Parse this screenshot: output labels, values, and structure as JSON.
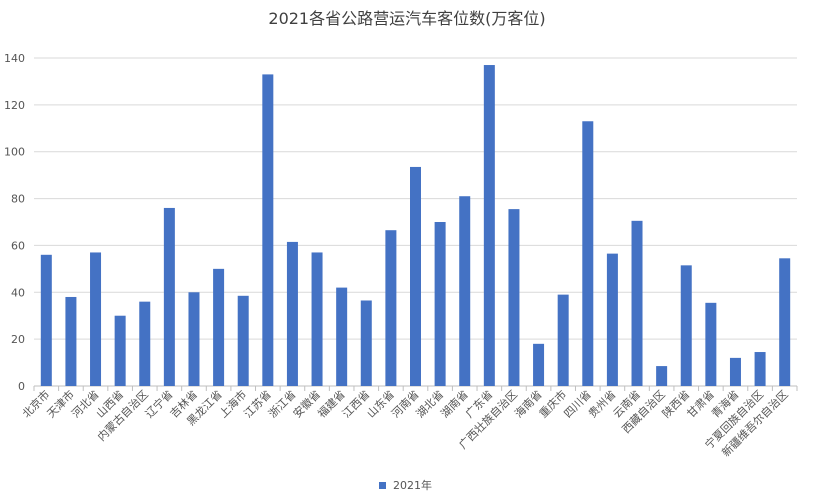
{
  "chart_data": {
    "type": "bar",
    "title": "2021各省公路营运汽车客位数(万客位)",
    "categories": [
      "北京市",
      "天津市",
      "河北省",
      "山西省",
      "内蒙古自治区",
      "辽宁省",
      "吉林省",
      "黑龙江省",
      "上海市",
      "江苏省",
      "浙江省",
      "安徽省",
      "福建省",
      "江西省",
      "山东省",
      "河南省",
      "湖北省",
      "湖南省",
      "广东省",
      "广西壮族自治区",
      "海南省",
      "重庆市",
      "四川省",
      "贵州省",
      "云南省",
      "西藏自治区",
      "陕西省",
      "甘肃省",
      "青海省",
      "宁夏回族自治区",
      "新疆维吾尔自治区"
    ],
    "series": [
      {
        "name": "2021年",
        "values": [
          56,
          38,
          57,
          30,
          36,
          76,
          40,
          50,
          38.5,
          133,
          61.5,
          57,
          42,
          36.5,
          66.5,
          93.5,
          70,
          81,
          137,
          75.5,
          18,
          39,
          113,
          56.5,
          70.5,
          8.5,
          51.5,
          35.5,
          12,
          14.5,
          54.5
        ]
      }
    ],
    "ylim": [
      0,
      140
    ],
    "yticks": [
      "0",
      "20",
      "40",
      "60",
      "80",
      "100",
      "120",
      "140"
    ],
    "grid": true,
    "legend": "bottom",
    "colors": {
      "bar": "#4472C4",
      "grid": "#d9d9d9",
      "axis": "#bfbfbf"
    }
  }
}
